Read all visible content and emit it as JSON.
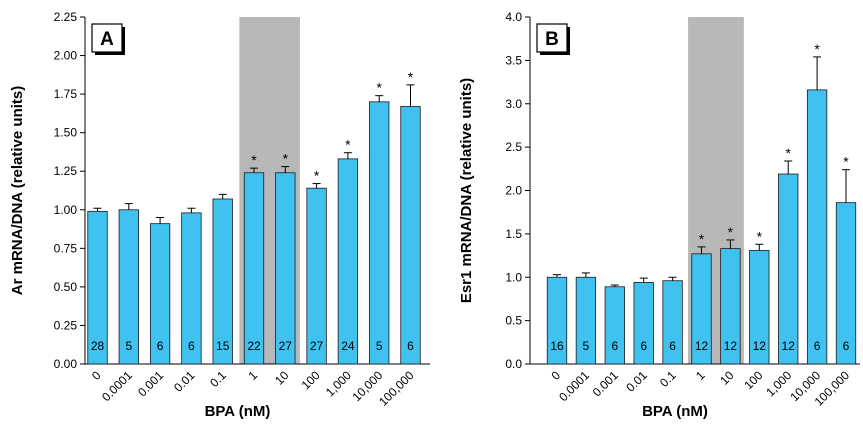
{
  "colors": {
    "bar": "#3fc2f0",
    "bar_stroke": "#1a1a1a",
    "shade": "#b8b8b8",
    "axis": "#000000"
  },
  "chart_data": [
    {
      "type": "bar",
      "panel": "A",
      "xlabel": "BPA (nM)",
      "ylabel": "Ar mRNA/DNA (relative units)",
      "categories": [
        "0",
        "0.0001",
        "0.001",
        "0.01",
        "0.1",
        "1",
        "10",
        "100",
        "1,000",
        "10,000",
        "100,000"
      ],
      "values": [
        0.99,
        1.0,
        0.91,
        0.98,
        1.07,
        1.24,
        1.24,
        1.14,
        1.33,
        1.7,
        1.67
      ],
      "errors": [
        0.02,
        0.04,
        0.04,
        0.03,
        0.03,
        0.03,
        0.04,
        0.03,
        0.04,
        0.04,
        0.14
      ],
      "n": [
        "28",
        "5",
        "6",
        "6",
        "15",
        "22",
        "27",
        "27",
        "24",
        "5",
        "6"
      ],
      "significant": [
        false,
        false,
        false,
        false,
        false,
        true,
        true,
        true,
        true,
        true,
        true
      ],
      "significance_mark": "*",
      "shaded_categories": [
        "1",
        "10"
      ],
      "ylim": [
        0,
        2.25
      ],
      "yticks": [
        "0.00",
        "0.25",
        "0.50",
        "0.75",
        "1.00",
        "1.25",
        "1.50",
        "1.75",
        "2.00",
        "2.25"
      ],
      "grid": false
    },
    {
      "type": "bar",
      "panel": "B",
      "xlabel": "BPA (nM)",
      "ylabel": "Esr1 mRNA/DNA (relative units)",
      "categories": [
        "0",
        "0.0001",
        "0.001",
        "0.01",
        "0.1",
        "1",
        "10",
        "100",
        "1,000",
        "10,000",
        "100,000"
      ],
      "values": [
        1.0,
        1.0,
        0.89,
        0.94,
        0.96,
        1.27,
        1.33,
        1.31,
        2.19,
        3.16,
        1.86
      ],
      "errors": [
        0.03,
        0.05,
        0.02,
        0.05,
        0.04,
        0.08,
        0.1,
        0.07,
        0.15,
        0.38,
        0.38
      ],
      "n": [
        "16",
        "5",
        "6",
        "6",
        "6",
        "12",
        "12",
        "12",
        "12",
        "6",
        "6"
      ],
      "significant": [
        false,
        false,
        false,
        false,
        false,
        true,
        true,
        true,
        true,
        true,
        true
      ],
      "significance_mark": "*",
      "shaded_categories": [
        "1",
        "10"
      ],
      "ylim": [
        0,
        4.0
      ],
      "yticks": [
        "0.0",
        "0.5",
        "1.0",
        "1.5",
        "2.0",
        "2.5",
        "3.0",
        "3.5",
        "4.0"
      ],
      "grid": false
    }
  ]
}
